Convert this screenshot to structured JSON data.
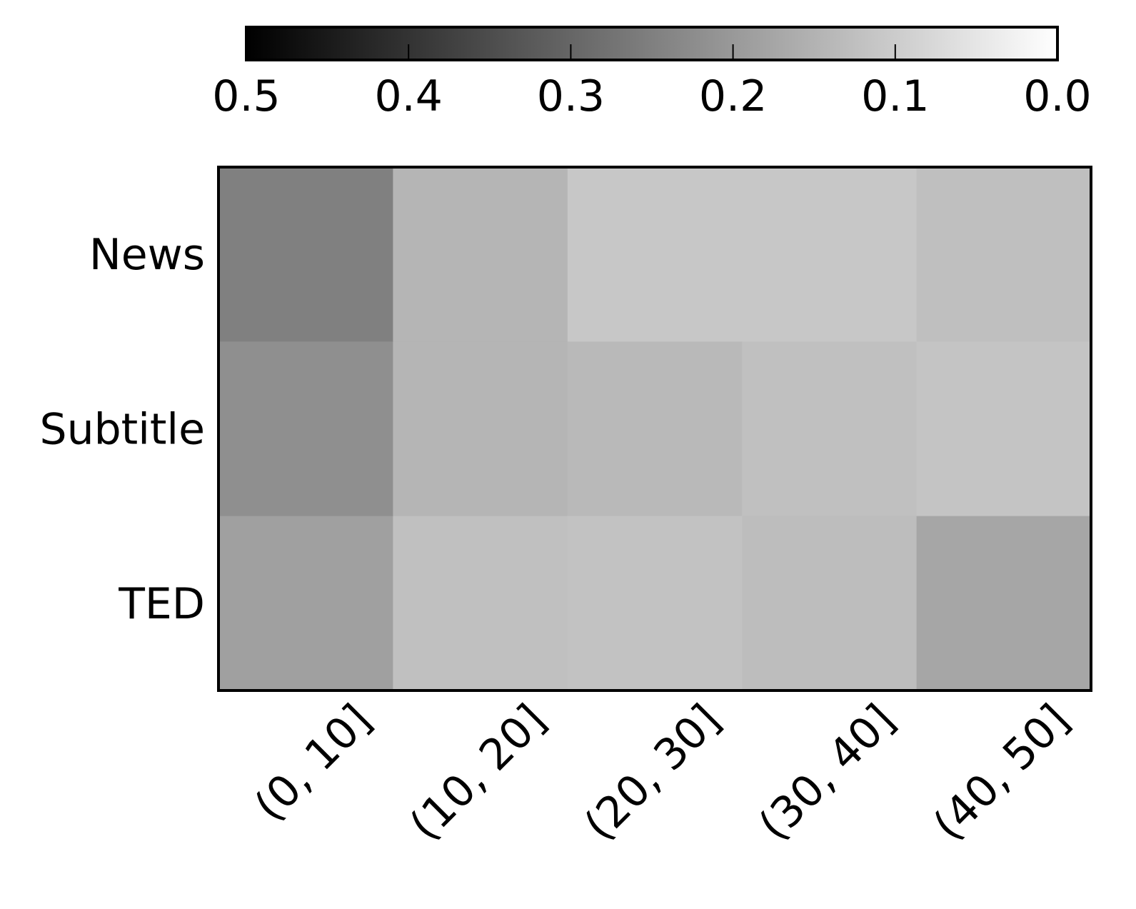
{
  "chart_data": {
    "type": "heatmap",
    "categories": [
      "(0, 10]",
      "(10, 20]",
      "(20, 30]",
      "(30, 40]",
      "(40, 50]"
    ],
    "rows": [
      "News",
      "Subtitle",
      "TED"
    ],
    "values": [
      [
        0.25,
        0.145,
        0.11,
        0.11,
        0.125
      ],
      [
        0.22,
        0.145,
        0.137,
        0.124,
        0.116
      ],
      [
        0.186,
        0.124,
        0.12,
        0.13,
        0.175
      ]
    ],
    "colormap": "gray_r",
    "clim": [
      0.5,
      0
    ],
    "cticks": [
      0.5,
      0.4,
      0.3,
      0.2,
      0.1,
      {
        "value": 0,
        "label": "0.0"
      }
    ]
  }
}
